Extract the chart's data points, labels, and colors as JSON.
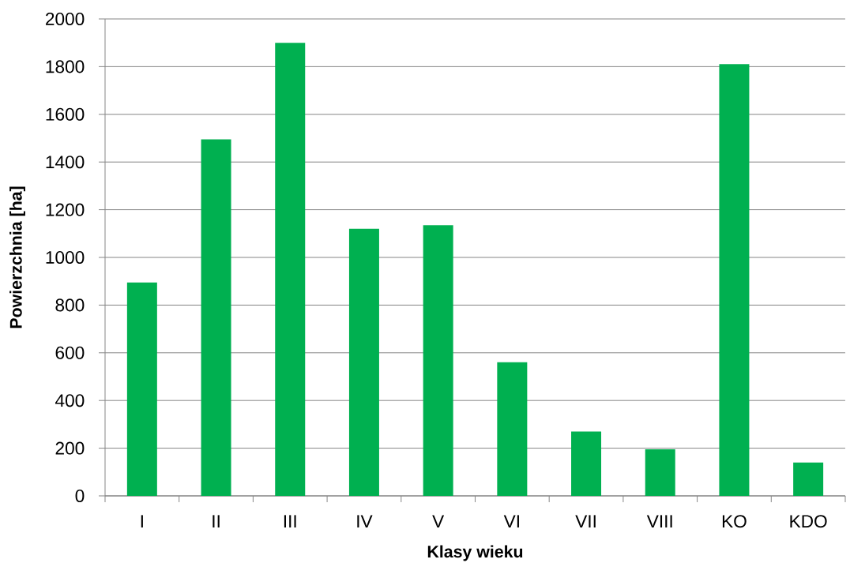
{
  "chart_data": {
    "type": "bar",
    "xlabel": "Klasy wieku",
    "ylabel": "Powierzchnia [ha]",
    "categories": [
      "I",
      "II",
      "III",
      "IV",
      "V",
      "VI",
      "VII",
      "VIII",
      "KO",
      "KDO"
    ],
    "values": [
      895,
      1495,
      1900,
      1120,
      1135,
      560,
      270,
      195,
      1810,
      140
    ],
    "color": "#00b050",
    "ylim": [
      0,
      2000
    ],
    "yticks": [
      0,
      200,
      400,
      600,
      800,
      1000,
      1200,
      1400,
      1600,
      1800,
      2000
    ],
    "grid": "y"
  }
}
